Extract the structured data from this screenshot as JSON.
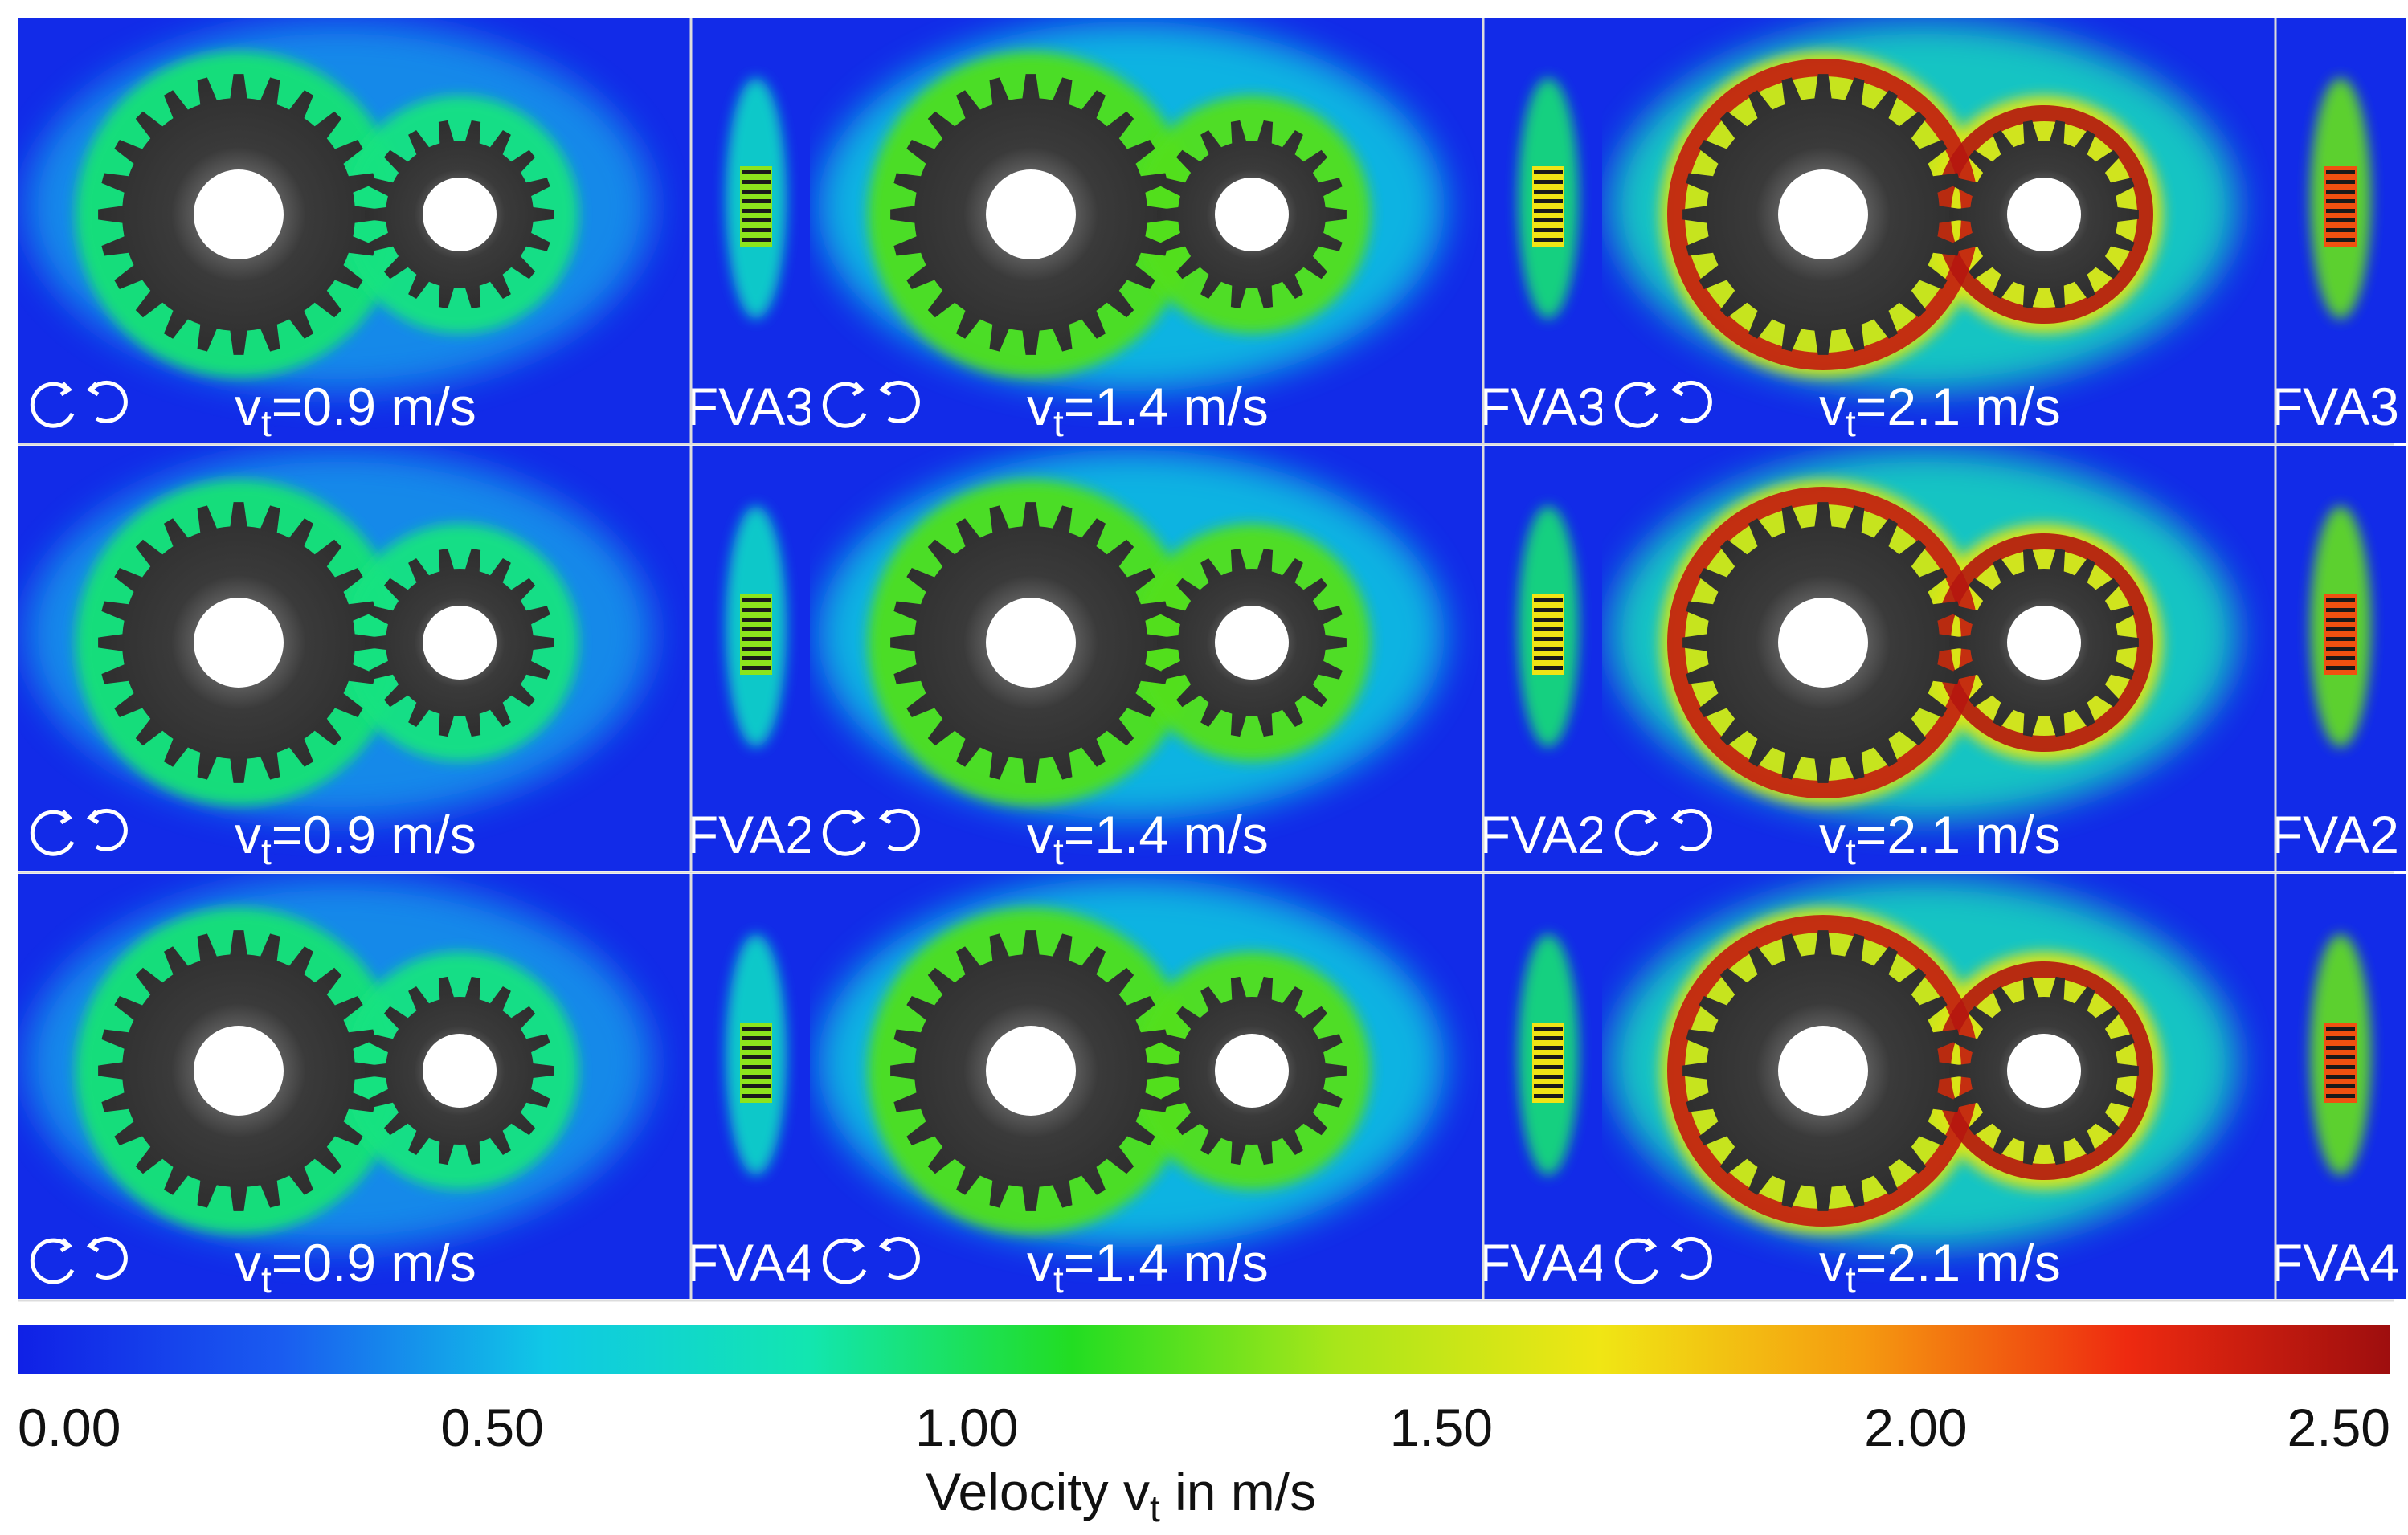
{
  "rows": [
    {
      "case_label": "FVA3"
    },
    {
      "case_label": "FVA2"
    },
    {
      "case_label": "FVA4"
    }
  ],
  "columns": [
    {
      "speed_value": "=0.9 m/s",
      "level": 0.22
    },
    {
      "speed_value": "=1.4 m/s",
      "level": 0.45
    },
    {
      "speed_value": "=2.1 m/s",
      "level": 0.75
    }
  ],
  "speed_symbol": "v",
  "speed_subscript": "t",
  "colorbar": {
    "ticks": [
      "0.00",
      "0.50",
      "1.00",
      "1.50",
      "2.00",
      "2.50"
    ],
    "min": 0,
    "max": 2.5,
    "title_prefix": "Velocity v",
    "title_subscript": "t",
    "title_suffix": " in m/s",
    "colors": [
      "#1020e6",
      "#1a5cf0",
      "#10c8e6",
      "#12e6b0",
      "#22dd22",
      "#a8e61a",
      "#f0e614",
      "#f59a10",
      "#ee2a10",
      "#9e0e0e"
    ]
  },
  "rotation_icon": "counter-rotating-arrows-icon"
}
